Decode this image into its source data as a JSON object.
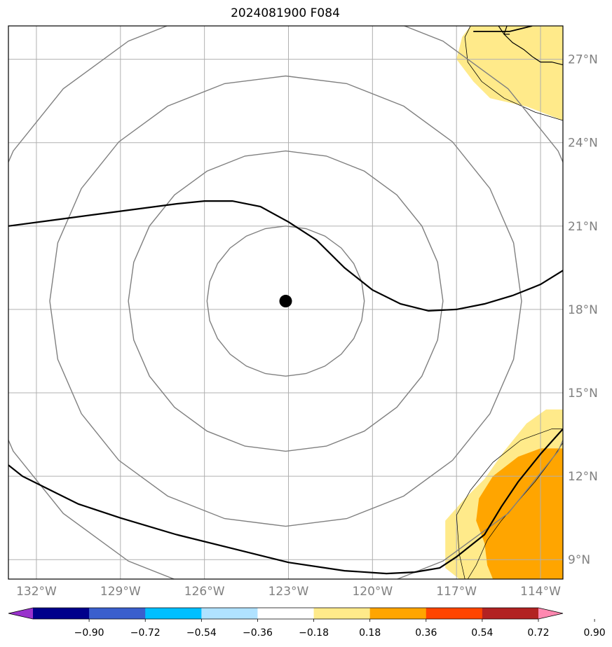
{
  "title": "2024081900 F084",
  "map": {
    "lon_range": [
      -133,
      -113.2
    ],
    "lat_range": [
      8.3,
      28.2
    ],
    "lat_labels": [
      {
        "lat": 27,
        "label": "27°N"
      },
      {
        "lat": 24,
        "label": "24°N"
      },
      {
        "lat": 21,
        "label": "21°N"
      },
      {
        "lat": 18,
        "label": "18°N"
      },
      {
        "lat": 15,
        "label": "15°N"
      },
      {
        "lat": 12,
        "label": "12°N"
      },
      {
        "lat": 9,
        "label": "9°N"
      }
    ],
    "lon_labels": [
      {
        "lon": -132,
        "label": "132°W"
      },
      {
        "lon": -129,
        "label": "129°W"
      },
      {
        "lon": -126,
        "label": "126°W"
      },
      {
        "lon": -123,
        "label": "123°W"
      },
      {
        "lon": -120,
        "label": "120°W"
      },
      {
        "lon": -117,
        "label": "117°W"
      },
      {
        "lon": -114,
        "label": "114°W"
      }
    ],
    "center_marker": {
      "lon": -123.1,
      "lat": 18.3
    },
    "range_ring_radii_deg": [
      2.7,
      5.4,
      8.1,
      10.8
    ],
    "colors": {
      "grid": "#b0b0b0",
      "ring": "#808080",
      "contour": "#000000",
      "fill_low": "#ffea8a",
      "fill_mid": "#ffa500"
    }
  },
  "colorbar": {
    "colors": [
      "#9932cc",
      "#00008b",
      "#3a5fcd",
      "#00bfff",
      "#b0e2ff",
      "#ffffff",
      "#ffea8a",
      "#ffa500",
      "#ff4500",
      "#b22222",
      "#ff88b0"
    ],
    "ticks": [
      "−0.90",
      "−0.72",
      "−0.54",
      "−0.36",
      "−0.18",
      "0.18",
      "0.36",
      "0.54",
      "0.72",
      "0.90"
    ]
  }
}
